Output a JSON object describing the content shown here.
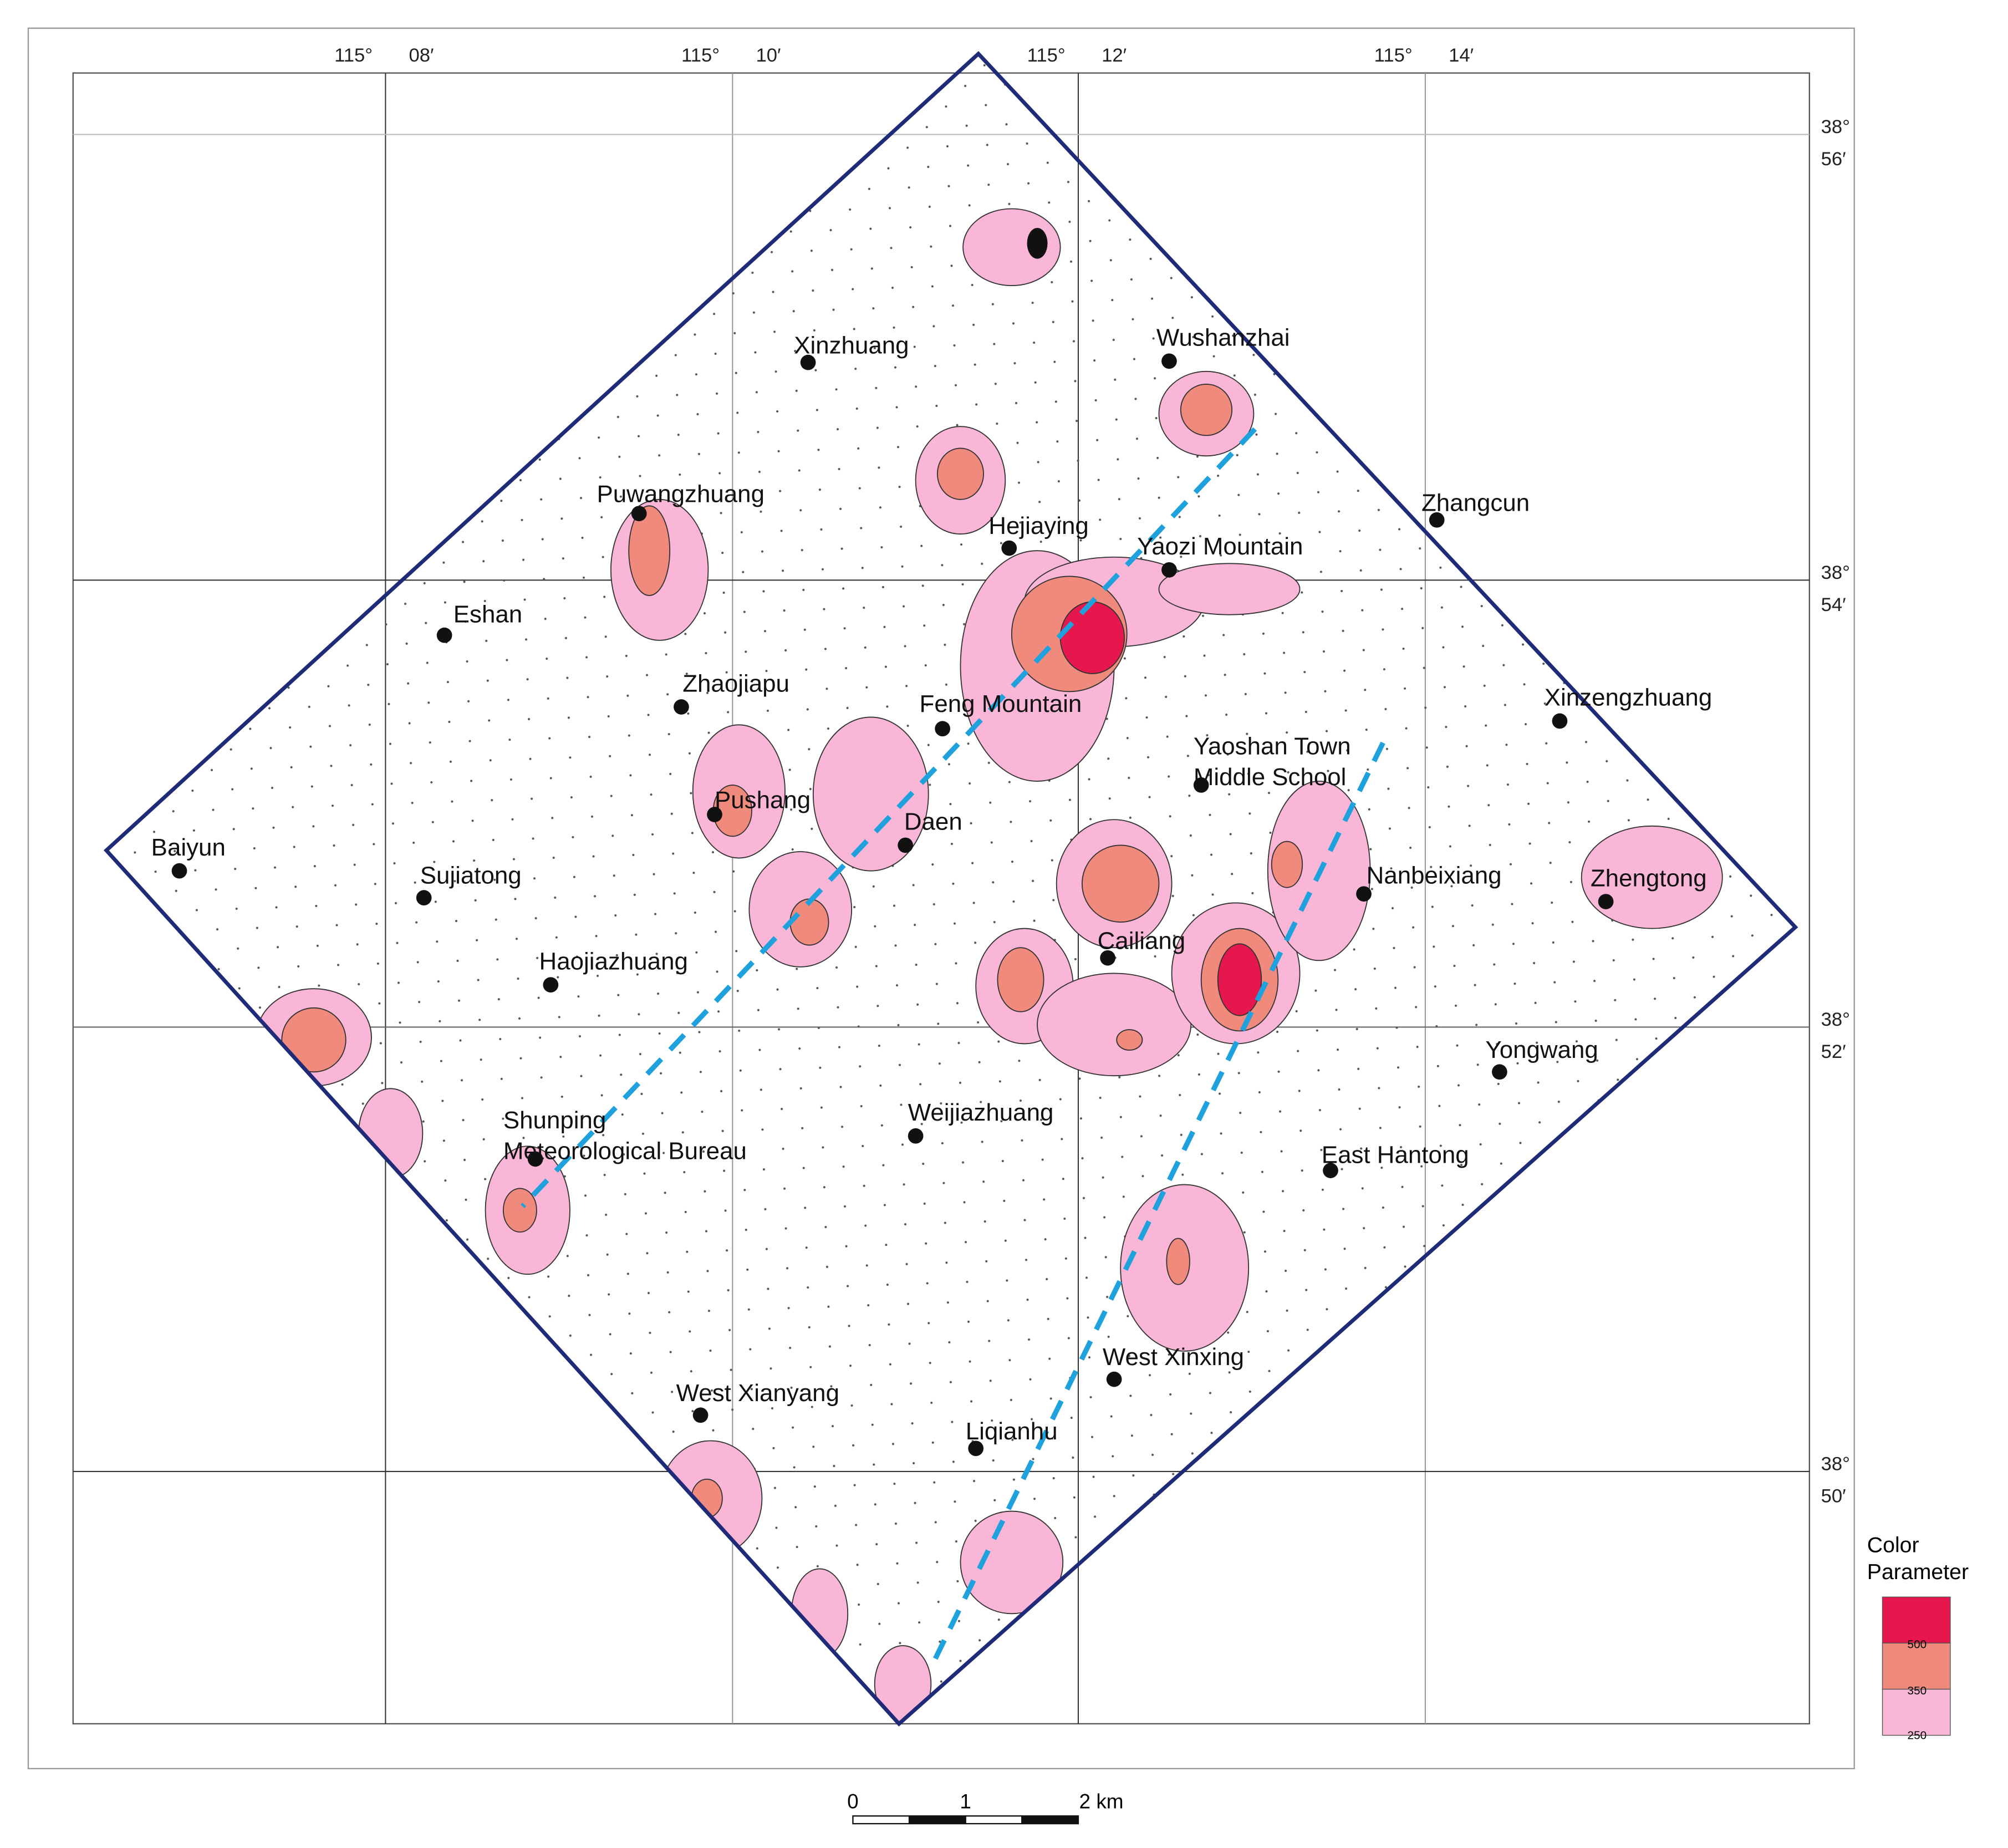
{
  "map": {
    "top_labels": [
      {
        "deg": "115°",
        "min": "08′"
      },
      {
        "deg": "115°",
        "min": "10′"
      },
      {
        "deg": "115°",
        "min": "12′"
      },
      {
        "deg": "115°",
        "min": "14′"
      }
    ],
    "right_labels": [
      {
        "deg": "38°",
        "min": "56′"
      },
      {
        "deg": "38°",
        "min": "54′"
      },
      {
        "deg": "38°",
        "min": "52′"
      },
      {
        "deg": "38°",
        "min": "50′"
      }
    ],
    "places": [
      {
        "lines": [
          "Xinzhuang"
        ]
      },
      {
        "lines": [
          "Wushanzhai"
        ]
      },
      {
        "lines": [
          "Puwangzhuang"
        ]
      },
      {
        "lines": [
          "Zhangcun"
        ]
      },
      {
        "lines": [
          "Hejiaying"
        ]
      },
      {
        "lines": [
          "Yaozi Mountain"
        ]
      },
      {
        "lines": [
          "Eshan"
        ]
      },
      {
        "lines": [
          "Zhaojiapu"
        ]
      },
      {
        "lines": [
          "Feng Mountain"
        ]
      },
      {
        "lines": [
          "Xinzengzhuang"
        ]
      },
      {
        "lines": [
          "Yaoshan Town",
          "Middle School"
        ]
      },
      {
        "lines": [
          "Pushang"
        ]
      },
      {
        "lines": [
          "Daen"
        ]
      },
      {
        "lines": [
          "Baiyun"
        ]
      },
      {
        "lines": [
          "Sujiatong"
        ]
      },
      {
        "lines": [
          "Nanbeixiang"
        ]
      },
      {
        "lines": [
          "Zhengtong"
        ]
      },
      {
        "lines": [
          "Cailiang"
        ]
      },
      {
        "lines": [
          "Haojiazhuang"
        ]
      },
      {
        "lines": [
          "Yongwang"
        ]
      },
      {
        "lines": [
          "Weijiazhuang"
        ]
      },
      {
        "lines": [
          "Shunping",
          "Meteorological Bureau"
        ]
      },
      {
        "lines": [
          "East Hantong"
        ]
      },
      {
        "lines": [
          "West Xinxing"
        ]
      },
      {
        "lines": [
          "West Xianyang"
        ]
      },
      {
        "lines": [
          "Liqianhu"
        ]
      }
    ],
    "legend": {
      "title": [
        "Color",
        "Parameter"
      ],
      "levels": [
        "500",
        "350",
        "250"
      ]
    },
    "scale_bar": [
      "0",
      "1",
      "2 km"
    ]
  }
}
